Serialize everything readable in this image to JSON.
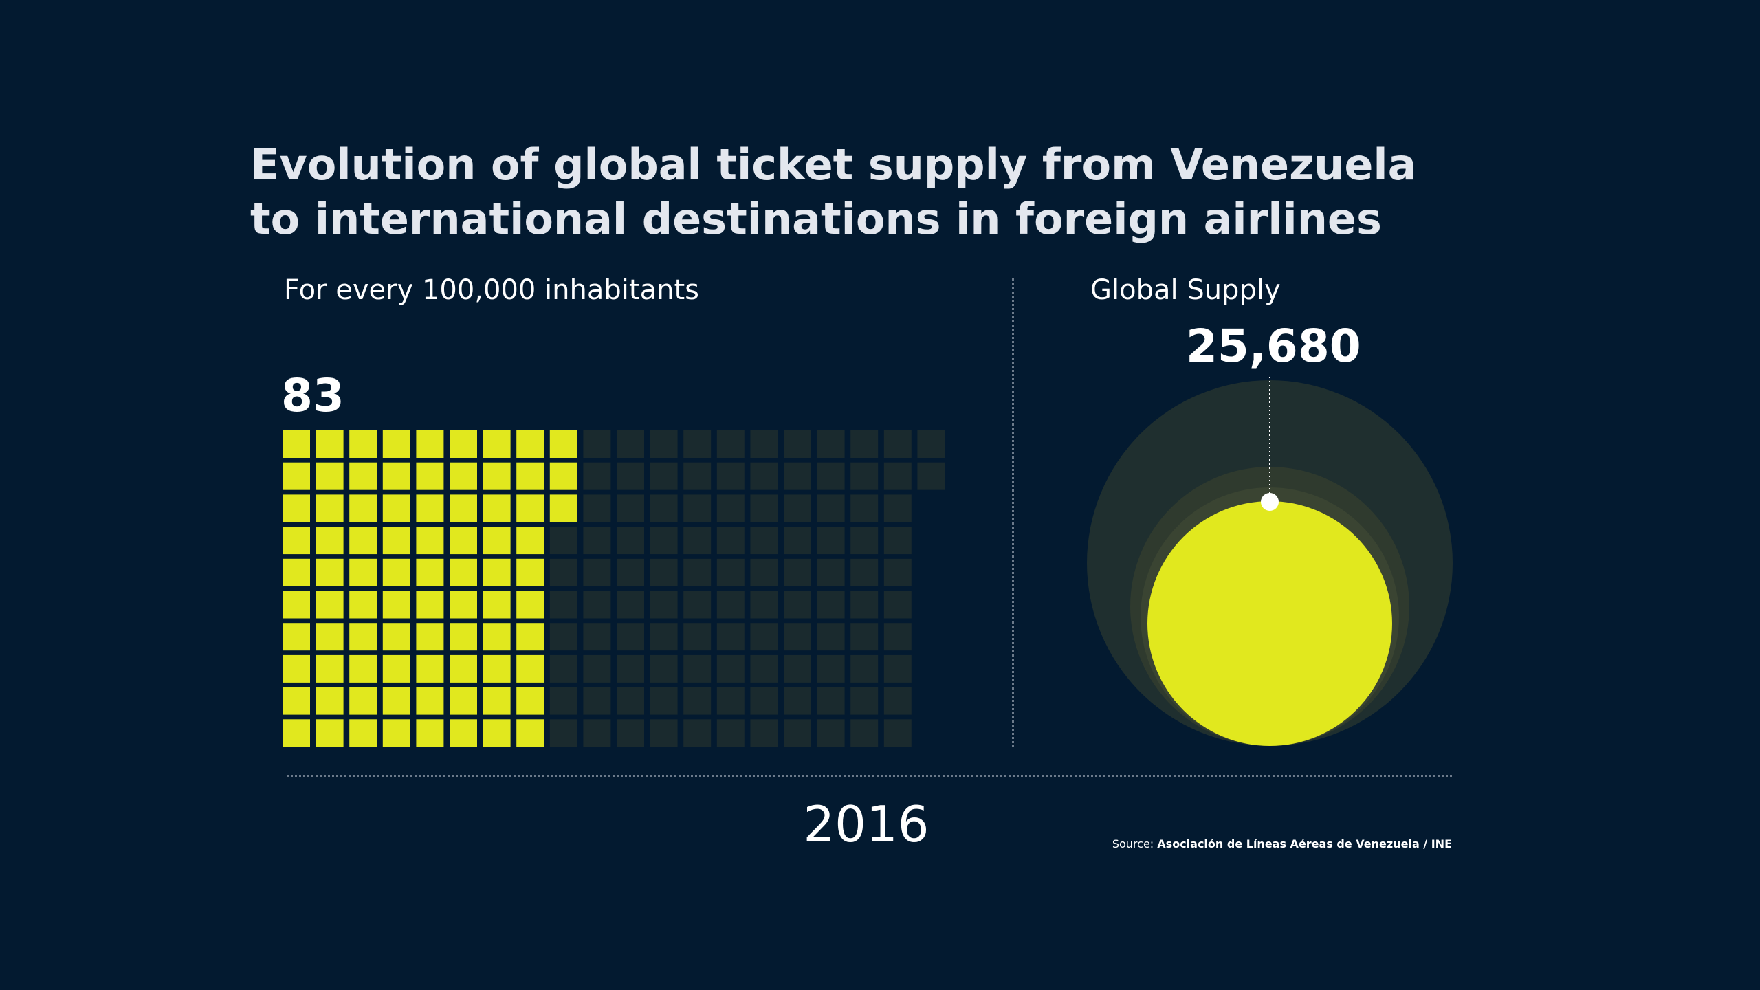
{
  "title": {
    "line1": "Evolution of global ticket supply from Venezuela",
    "line2": "to international destinations in foreign airlines"
  },
  "left_panel": {
    "subtitle": "For every 100,000 inhabitants",
    "value_label": "83"
  },
  "right_panel": {
    "subtitle": "Global Supply",
    "value_label": "25,680"
  },
  "year": "2016",
  "source": {
    "label": "Source:",
    "text": "Asociación de Líneas Aéreas de Venezuela / INE"
  },
  "colors": {
    "background": "#031a30",
    "highlight": "#e1e81e",
    "empty_square": "#1a2a2e",
    "outer_circle": "#1f2f2f",
    "middle_circle": "#2f3a2e",
    "text": "#ffffff"
  },
  "chart_data": [
    {
      "type": "waffle",
      "title": "For every 100,000 inhabitants",
      "year": "2016",
      "value": 83,
      "value_label": "83"
    },
    {
      "type": "bubble",
      "title": "Global Supply",
      "year": "2016",
      "value": 25680,
      "value_label": "25,680"
    }
  ]
}
